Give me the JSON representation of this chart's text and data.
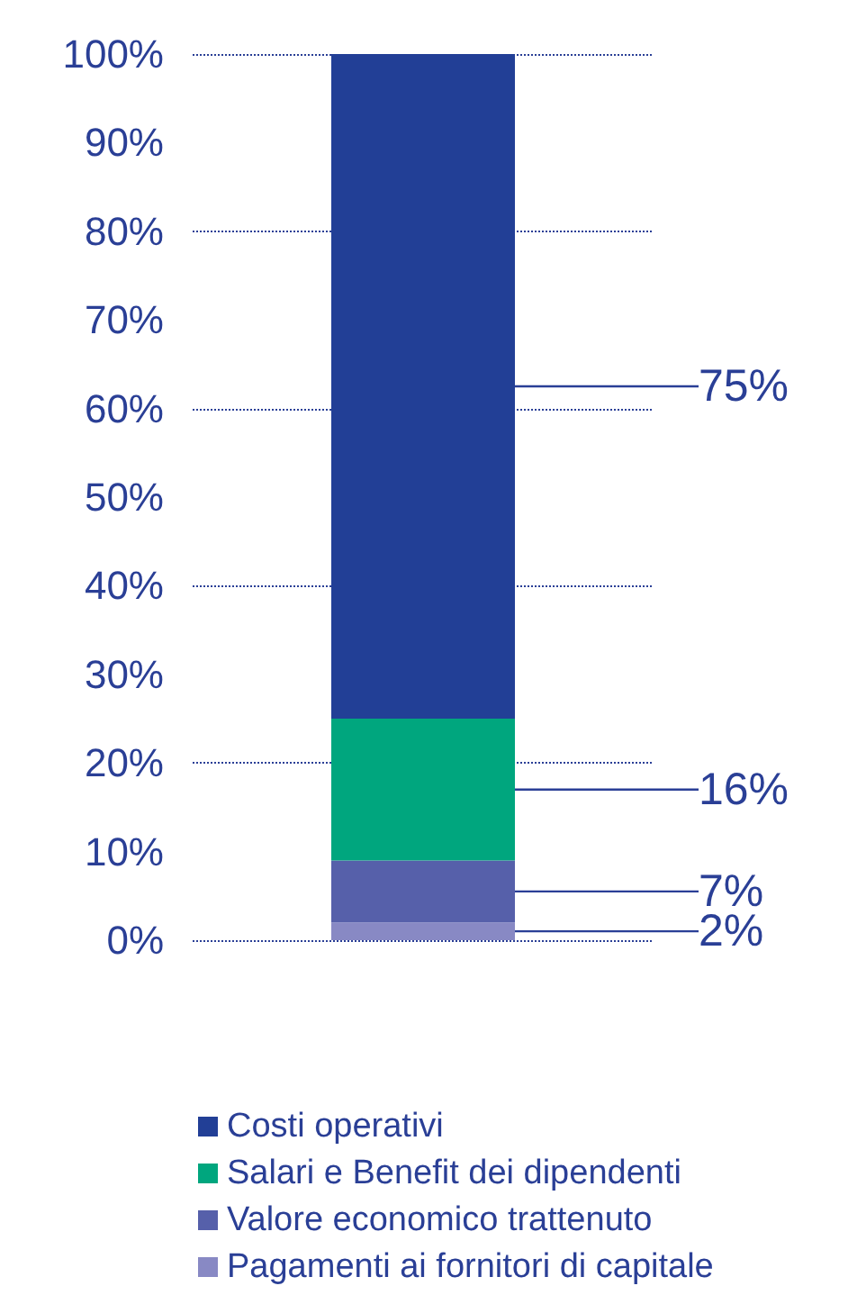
{
  "chart_data": {
    "type": "bar",
    "stacked": true,
    "categories": [
      null
    ],
    "series": [
      {
        "name": "Pagamenti ai fornitori di capitale",
        "color": "#8889c4",
        "values": [
          2
        ],
        "value_labels": [
          "2%"
        ]
      },
      {
        "name": "Valore economico trattenuto",
        "color": "#5660aa",
        "values": [
          7
        ],
        "value_labels": [
          "7%"
        ]
      },
      {
        "name": "Salari e Benefit dei dipendenti",
        "color": "#00a67e",
        "values": [
          16
        ],
        "value_labels": [
          "16%"
        ]
      },
      {
        "name": "Costi operativi",
        "color": "#223f96",
        "values": [
          75
        ],
        "value_labels": [
          "75%"
        ]
      }
    ],
    "ylim": [
      0,
      100
    ],
    "yticks": [
      {
        "value": 0,
        "label": "0%"
      },
      {
        "value": 10,
        "label": "10%"
      },
      {
        "value": 20,
        "label": "20%"
      },
      {
        "value": 30,
        "label": "30%"
      },
      {
        "value": 40,
        "label": "40%"
      },
      {
        "value": 50,
        "label": "50%"
      },
      {
        "value": 60,
        "label": "60%"
      },
      {
        "value": 70,
        "label": "70%"
      },
      {
        "value": 80,
        "label": "80%"
      },
      {
        "value": 90,
        "label": "90%"
      },
      {
        "value": 100,
        "label": "100%"
      }
    ],
    "grid": "y",
    "legend": "bottom",
    "tick_labels": "y"
  }
}
